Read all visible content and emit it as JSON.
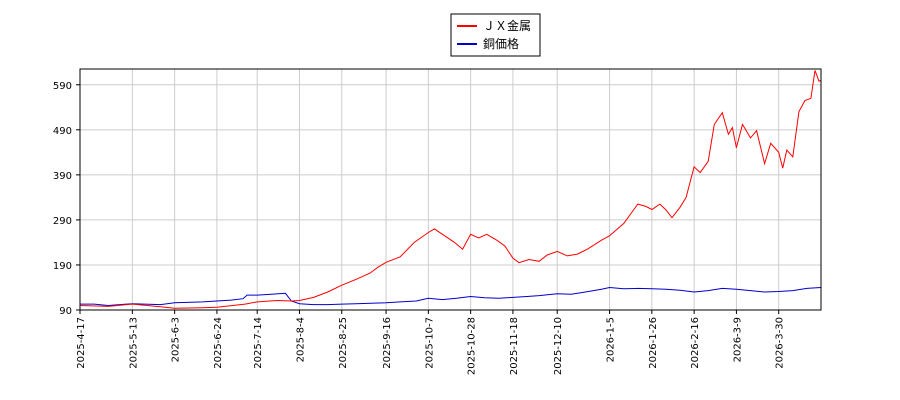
{
  "chart_data": {
    "type": "line",
    "grid": true,
    "legend_placement": "top-center",
    "ylim": [
      90,
      625
    ],
    "yticks": [
      90,
      190,
      290,
      390,
      490,
      590
    ],
    "x_start": "2025-04-17",
    "x_end": "2026-04-20",
    "xticks": [
      "2025-4-17",
      "2025-5-13",
      "2025-6-3",
      "2025-6-24",
      "2025-7-14",
      "2025-8-4",
      "2025-8-25",
      "2025-9-16",
      "2025-10-7",
      "2025-10-28",
      "2025-11-18",
      "2025-12-10",
      "2026-1-5",
      "2026-1-26",
      "2026-2-16",
      "2026-3-9",
      "2026-3-30"
    ],
    "series": [
      {
        "name": "ＪＸ金属",
        "color": "#ff0000",
        "points": [
          [
            "2025-04-17",
            100
          ],
          [
            "2025-05-01",
            98
          ],
          [
            "2025-05-13",
            103
          ],
          [
            "2025-05-27",
            97
          ],
          [
            "2025-06-03",
            94
          ],
          [
            "2025-06-17",
            95
          ],
          [
            "2025-06-24",
            96
          ],
          [
            "2025-07-08",
            103
          ],
          [
            "2025-07-14",
            108
          ],
          [
            "2025-07-24",
            111
          ],
          [
            "2025-07-31",
            110
          ],
          [
            "2025-08-04",
            111
          ],
          [
            "2025-08-11",
            118
          ],
          [
            "2025-08-18",
            130
          ],
          [
            "2025-08-25",
            145
          ],
          [
            "2025-09-01",
            158
          ],
          [
            "2025-09-08",
            172
          ],
          [
            "2025-09-12",
            185
          ],
          [
            "2025-09-16",
            196
          ],
          [
            "2025-09-23",
            208
          ],
          [
            "2025-09-30",
            240
          ],
          [
            "2025-10-07",
            262
          ],
          [
            "2025-10-10",
            270
          ],
          [
            "2025-10-15",
            255
          ],
          [
            "2025-10-20",
            240
          ],
          [
            "2025-10-24",
            225
          ],
          [
            "2025-10-28",
            258
          ],
          [
            "2025-11-01",
            250
          ],
          [
            "2025-11-05",
            258
          ],
          [
            "2025-11-10",
            245
          ],
          [
            "2025-11-14",
            232
          ],
          [
            "2025-11-18",
            205
          ],
          [
            "2025-11-21",
            195
          ],
          [
            "2025-11-26",
            202
          ],
          [
            "2025-12-01",
            198
          ],
          [
            "2025-12-05",
            212
          ],
          [
            "2025-12-10",
            220
          ],
          [
            "2025-12-15",
            210
          ],
          [
            "2025-12-20",
            214
          ],
          [
            "2025-12-25",
            225
          ],
          [
            "2026-01-01",
            245
          ],
          [
            "2026-01-05",
            255
          ],
          [
            "2026-01-12",
            282
          ],
          [
            "2026-01-19",
            325
          ],
          [
            "2026-01-23",
            320
          ],
          [
            "2026-01-26",
            313
          ],
          [
            "2026-01-30",
            325
          ],
          [
            "2026-02-02",
            312
          ],
          [
            "2026-02-05",
            295
          ],
          [
            "2026-02-09",
            318
          ],
          [
            "2026-02-12",
            340
          ],
          [
            "2026-02-16",
            408
          ],
          [
            "2026-02-19",
            395
          ],
          [
            "2026-02-23",
            420
          ],
          [
            "2026-02-26",
            502
          ],
          [
            "2026-03-02",
            528
          ],
          [
            "2026-03-05",
            480
          ],
          [
            "2026-03-07",
            495
          ],
          [
            "2026-03-09",
            450
          ],
          [
            "2026-03-12",
            502
          ],
          [
            "2026-03-16",
            472
          ],
          [
            "2026-03-19",
            488
          ],
          [
            "2026-03-23",
            415
          ],
          [
            "2026-03-26",
            460
          ],
          [
            "2026-03-30",
            440
          ],
          [
            "2026-04-01",
            405
          ],
          [
            "2026-04-03",
            445
          ],
          [
            "2026-04-06",
            430
          ],
          [
            "2026-04-09",
            530
          ],
          [
            "2026-04-12",
            555
          ],
          [
            "2026-04-15",
            560
          ],
          [
            "2026-04-17",
            622
          ],
          [
            "2026-04-19",
            598
          ],
          [
            "2026-04-20",
            600
          ]
        ]
      },
      {
        "name": "銅価格",
        "color": "#0000cd",
        "points": [
          [
            "2025-04-17",
            103
          ],
          [
            "2025-04-24",
            103
          ],
          [
            "2025-05-01",
            100
          ],
          [
            "2025-05-13",
            104
          ],
          [
            "2025-05-27",
            102
          ],
          [
            "2025-06-03",
            106
          ],
          [
            "2025-06-17",
            108
          ],
          [
            "2025-06-24",
            110
          ],
          [
            "2025-07-01",
            112
          ],
          [
            "2025-07-07",
            115
          ],
          [
            "2025-07-09",
            123
          ],
          [
            "2025-07-14",
            123
          ],
          [
            "2025-07-21",
            125
          ],
          [
            "2025-07-28",
            127
          ],
          [
            "2025-07-31",
            110
          ],
          [
            "2025-08-04",
            104
          ],
          [
            "2025-08-11",
            102
          ],
          [
            "2025-08-18",
            102
          ],
          [
            "2025-08-25",
            103
          ],
          [
            "2025-09-01",
            104
          ],
          [
            "2025-09-16",
            106
          ],
          [
            "2025-09-23",
            108
          ],
          [
            "2025-10-01",
            110
          ],
          [
            "2025-10-07",
            116
          ],
          [
            "2025-10-14",
            113
          ],
          [
            "2025-10-21",
            116
          ],
          [
            "2025-10-28",
            120
          ],
          [
            "2025-11-04",
            117
          ],
          [
            "2025-11-11",
            116
          ],
          [
            "2025-11-18",
            118
          ],
          [
            "2025-11-25",
            120
          ],
          [
            "2025-12-01",
            122
          ],
          [
            "2025-12-10",
            126
          ],
          [
            "2025-12-17",
            125
          ],
          [
            "2025-12-24",
            130
          ],
          [
            "2026-01-01",
            136
          ],
          [
            "2026-01-05",
            140
          ],
          [
            "2026-01-12",
            137
          ],
          [
            "2026-01-19",
            138
          ],
          [
            "2026-01-26",
            137
          ],
          [
            "2026-02-02",
            136
          ],
          [
            "2026-02-09",
            134
          ],
          [
            "2026-02-16",
            130
          ],
          [
            "2026-02-23",
            133
          ],
          [
            "2026-03-02",
            138
          ],
          [
            "2026-03-09",
            136
          ],
          [
            "2026-03-16",
            133
          ],
          [
            "2026-03-23",
            130
          ],
          [
            "2026-03-30",
            131
          ],
          [
            "2026-04-06",
            133
          ],
          [
            "2026-04-13",
            138
          ],
          [
            "2026-04-20",
            140
          ]
        ]
      }
    ]
  }
}
